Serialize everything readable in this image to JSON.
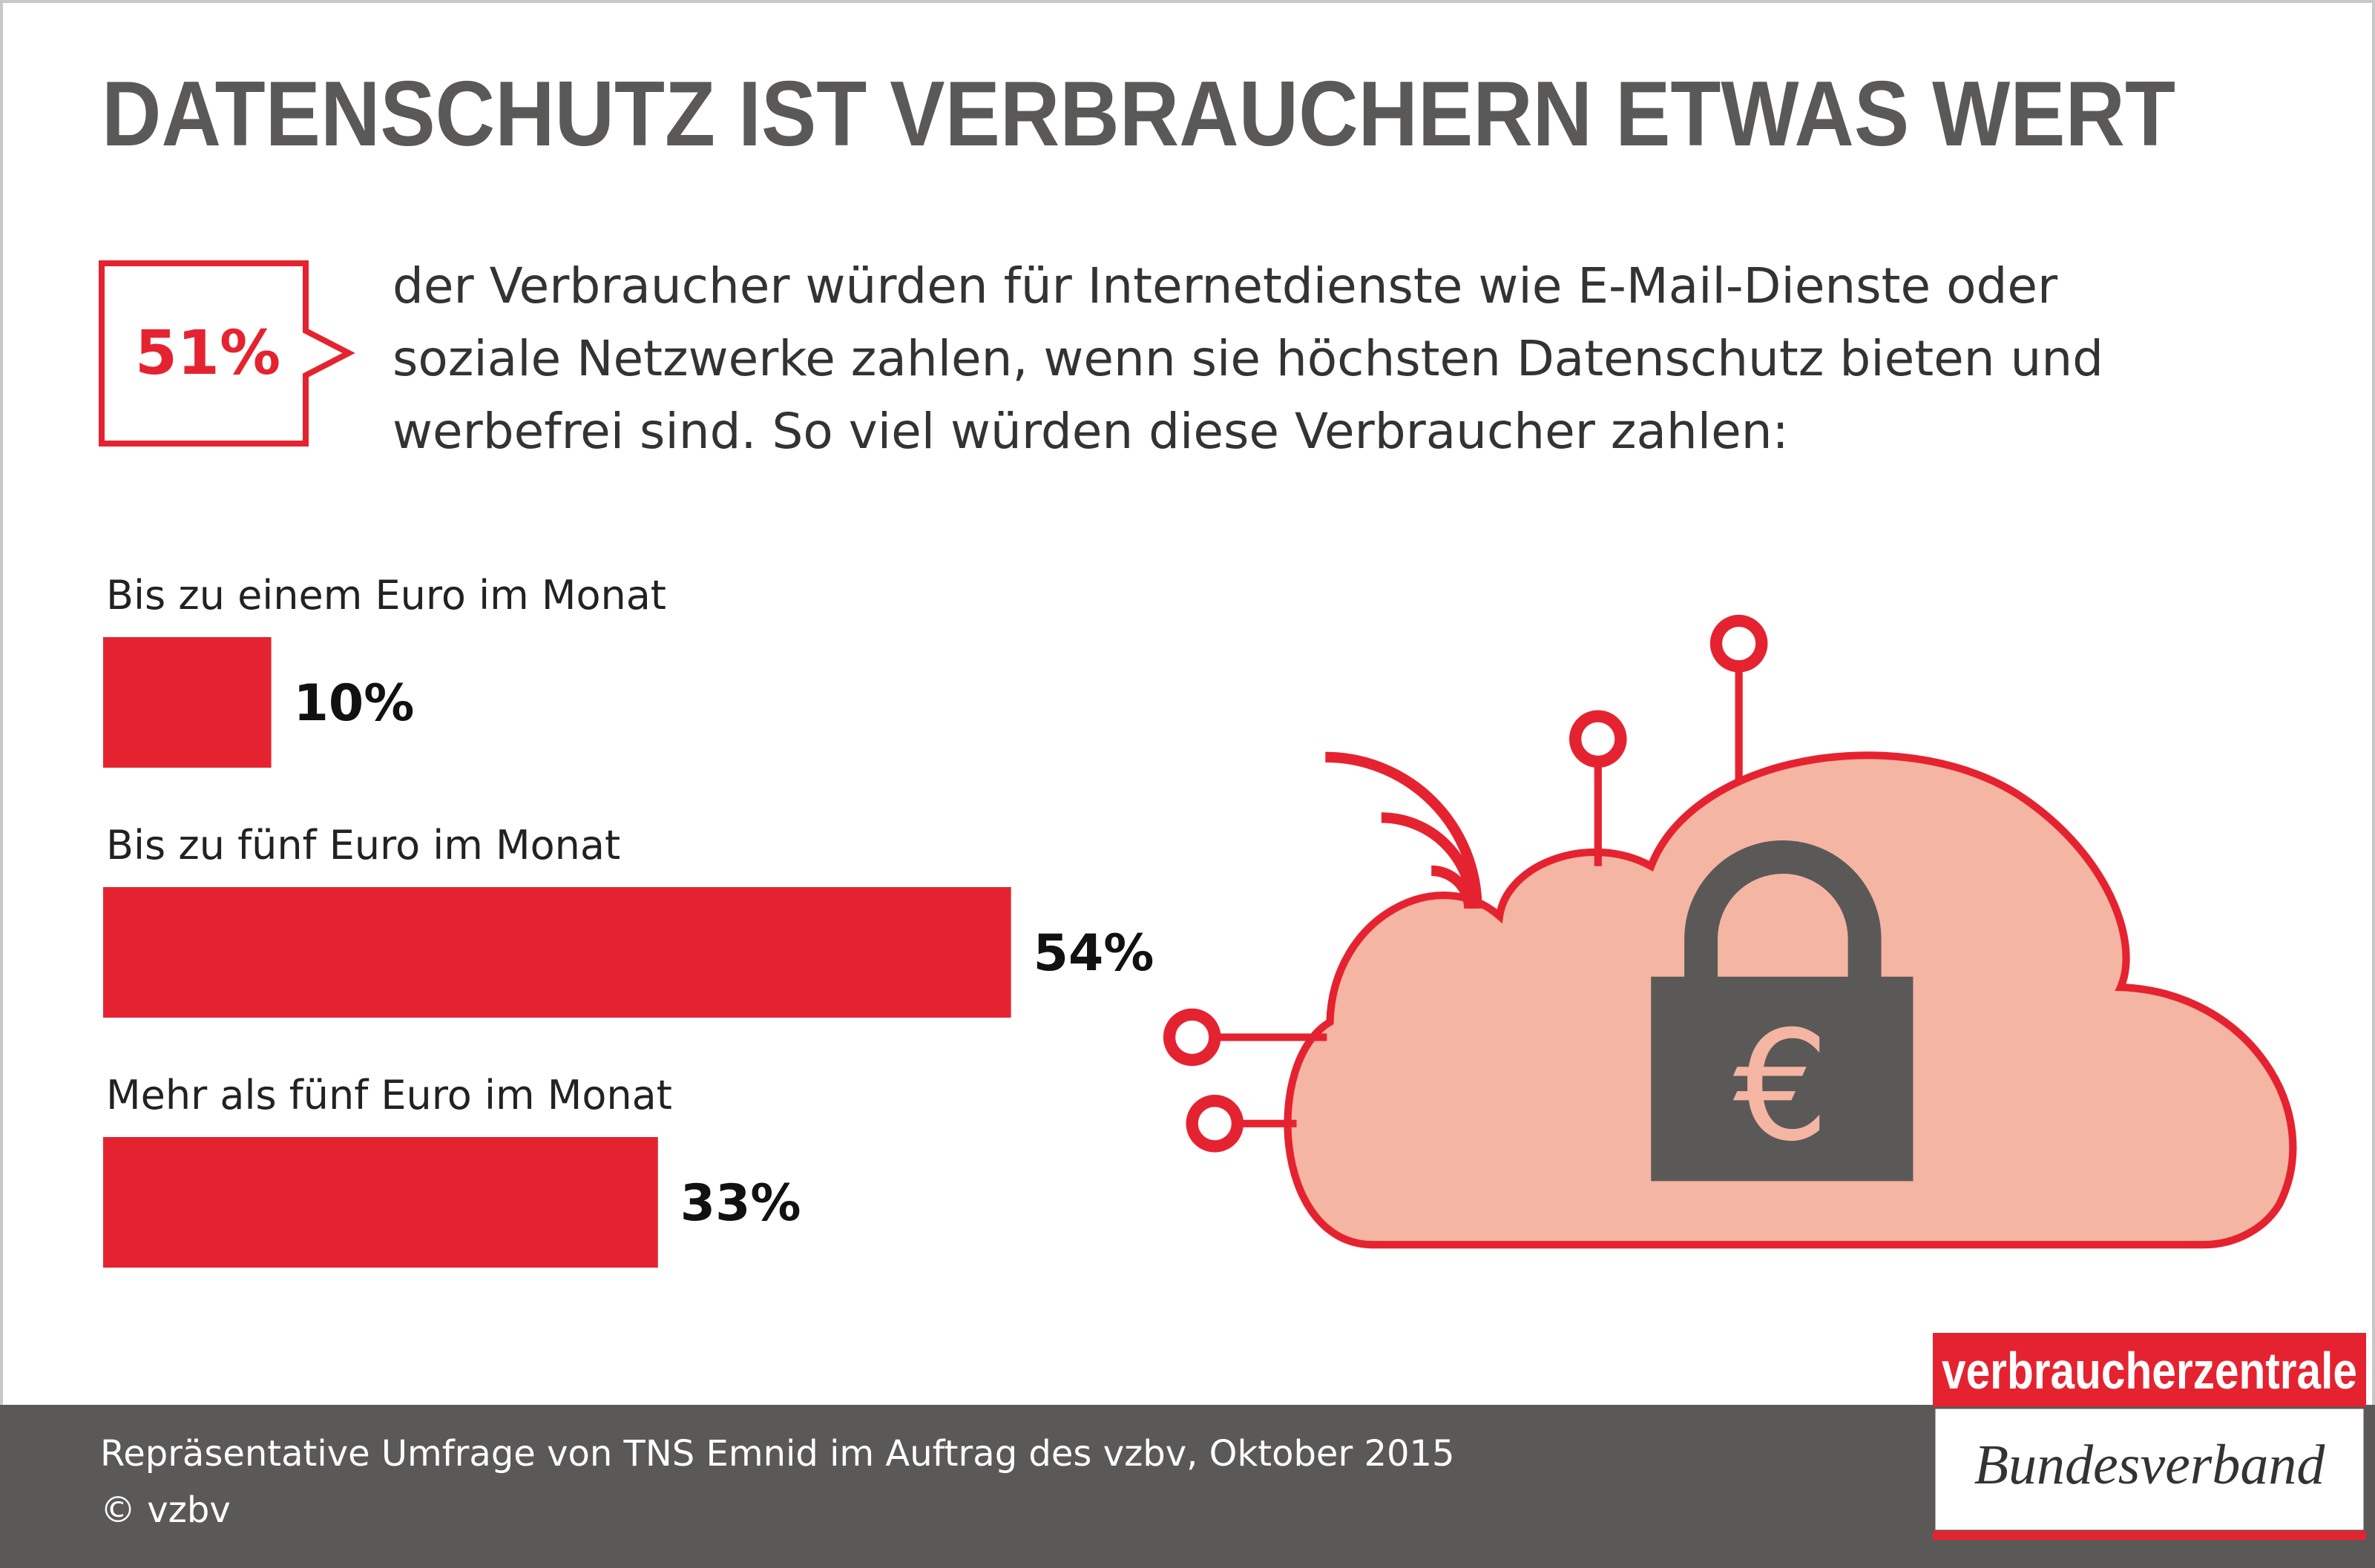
{
  "chart_data": {
    "type": "bar",
    "title": "DATENSCHUTZ IST VERBRAUCHERN ETWAS WERT",
    "highlight": "51%",
    "description_lines": [
      "der Verbraucher würden für Internetdienste wie E-Mail-Dienste oder",
      "soziale Netzwerke zahlen, wenn sie höchsten Datenschutz bieten und",
      "werbefrei sind. So viel würden diese Verbraucher zahlen:"
    ],
    "categories": [
      "Bis zu einem Euro im Monat",
      "Bis zu fünf Euro im Monat",
      "Mehr als fünf Euro im Monat"
    ],
    "values": [
      10,
      54,
      33
    ],
    "value_labels": [
      "10%",
      "54%",
      "33%"
    ],
    "color": "#e52330",
    "source": "Repräsentative Umfrage von TNS Emnid im Auftrag des vzbv, Oktober 2015",
    "copyright": "© vzbv"
  },
  "logo": {
    "name": "verbraucherzentrale",
    "subname": "Bundesverband"
  }
}
